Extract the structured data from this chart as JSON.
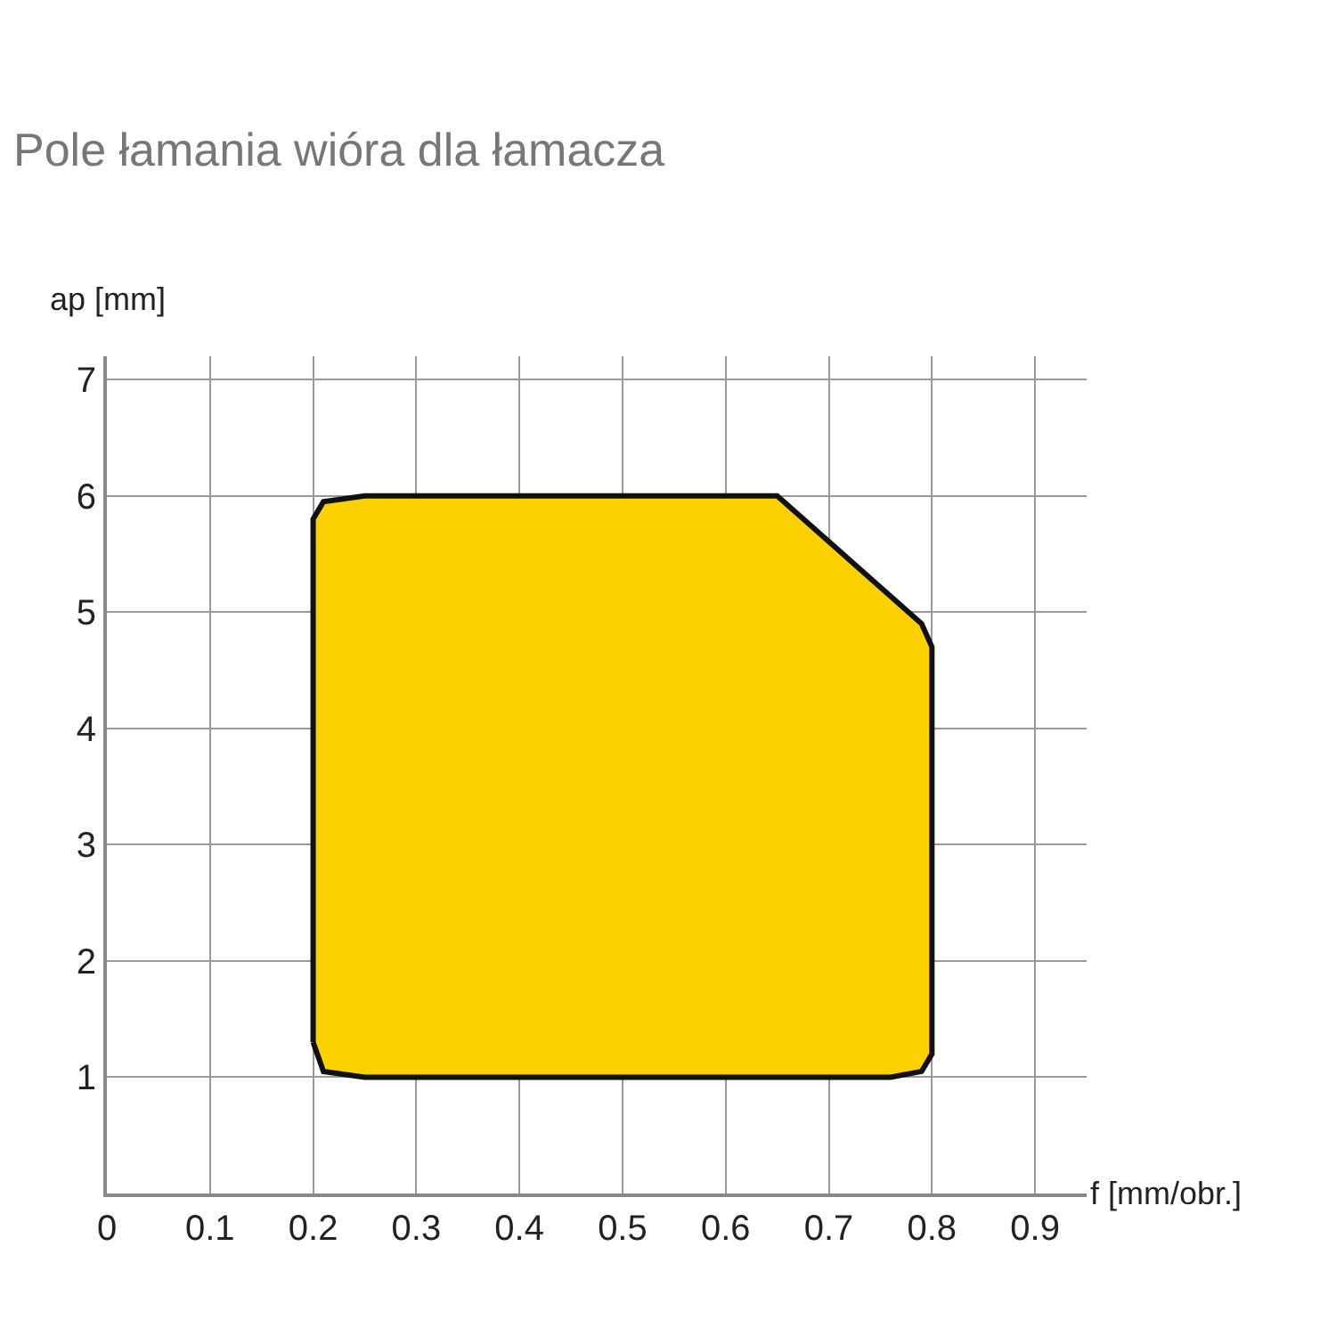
{
  "chart_data": {
    "type": "area",
    "title": "Pole łamania wióra dla łamacza",
    "xlabel": "f [mm/obr.]",
    "ylabel": "ap [mm]",
    "series": [
      {
        "color": "#fdd100",
        "x": [
          0.2,
          0.2,
          0.21,
          0.25,
          0.65,
          0.79,
          0.8,
          0.8,
          0.79,
          0.76,
          0.25,
          0.21,
          0.2
        ],
        "values": [
          1.3,
          5.8,
          5.95,
          6.0,
          6.0,
          4.9,
          4.7,
          1.2,
          1.05,
          1.0,
          1.0,
          1.05,
          1.3
        ]
      }
    ],
    "xlim": [
      0,
      0.95
    ],
    "ylim": [
      0,
      7.2
    ],
    "xticks": [
      0,
      0.1,
      0.2,
      0.3,
      0.4,
      0.5,
      0.6,
      0.7,
      0.8,
      0.9
    ],
    "yticks": [
      1,
      2,
      3,
      4,
      5,
      6,
      7
    ],
    "grid": true,
    "legend": false
  }
}
